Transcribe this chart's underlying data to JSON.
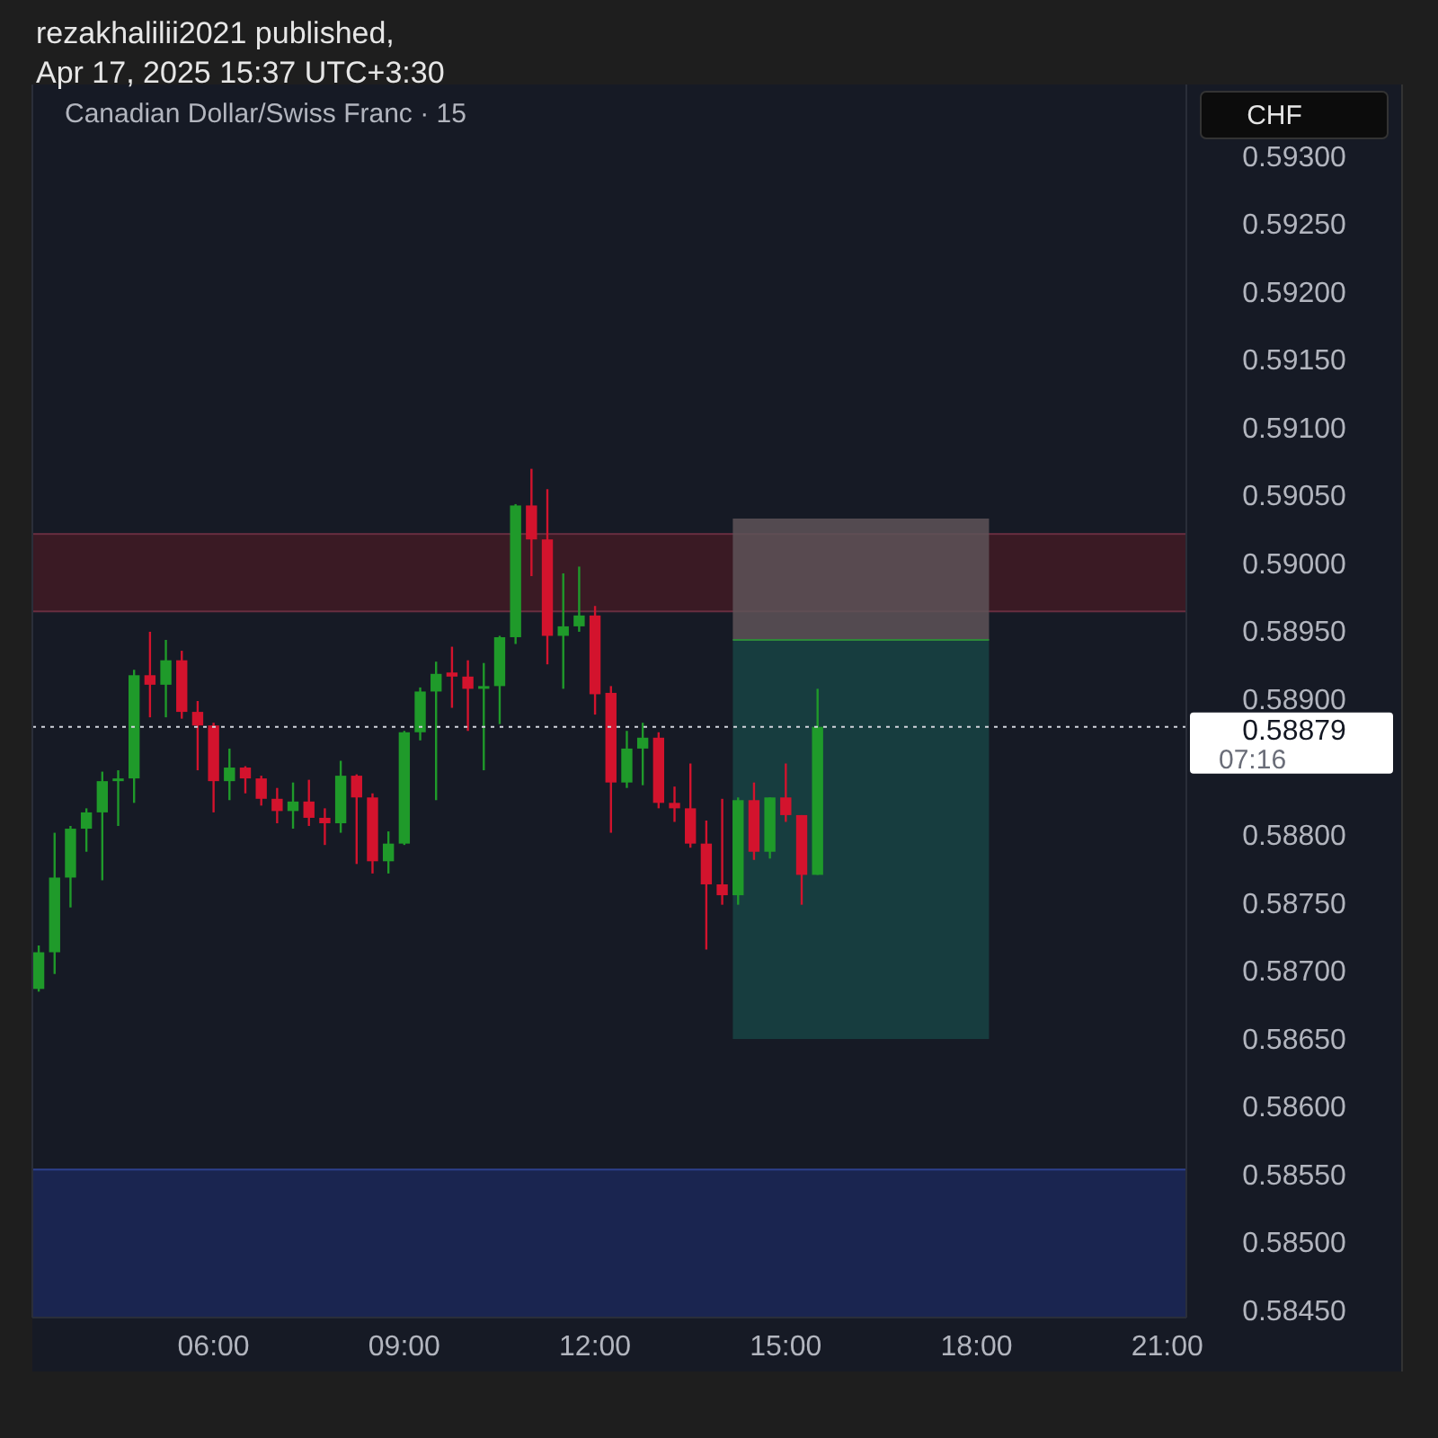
{
  "chart_data": {
    "type": "candlestick",
    "title": "Canadian Dollar/Swiss Franc · 15",
    "subtitle": "rezakhalilii2021 published,\nApr 17, 2025 15:37 UTC+3:30",
    "ylabel": "CHF",
    "x": [
      3.25,
      3.5,
      3.75,
      4,
      4.25,
      4.5,
      4.75,
      5,
      5.25,
      5.5,
      5.75,
      6,
      6.25,
      6.5,
      6.75,
      7,
      7.25,
      7.5,
      7.75,
      8,
      8.25,
      8.5,
      8.75,
      9,
      9.25,
      9.5,
      9.75,
      10,
      10.25,
      10.5,
      10.75,
      11,
      11.25,
      11.5,
      11.75,
      12,
      12.25,
      12.5,
      12.75,
      13,
      13.25,
      13.5,
      13.75,
      14,
      14.25,
      14.5,
      14.75,
      15,
      15.25,
      15.5
    ],
    "ohlc": [
      [
        0.58686,
        0.58718,
        0.58684,
        0.58713
      ],
      [
        0.58713,
        0.58801,
        0.58697,
        0.58768
      ],
      [
        0.58768,
        0.58806,
        0.58746,
        0.58804
      ],
      [
        0.58804,
        0.58819,
        0.58787,
        0.58816
      ],
      [
        0.58816,
        0.58846,
        0.58766,
        0.58839
      ],
      [
        0.58839,
        0.58847,
        0.58806,
        0.58841
      ],
      [
        0.58841,
        0.58921,
        0.58823,
        0.58917
      ],
      [
        0.58917,
        0.58949,
        0.58886,
        0.5891
      ],
      [
        0.5891,
        0.58943,
        0.58886,
        0.58928
      ],
      [
        0.58928,
        0.58935,
        0.58885,
        0.5889
      ],
      [
        0.5889,
        0.58898,
        0.58847,
        0.5888
      ],
      [
        0.5888,
        0.58882,
        0.58816,
        0.58839
      ],
      [
        0.58839,
        0.58863,
        0.58825,
        0.58849
      ],
      [
        0.58849,
        0.5885,
        0.5883,
        0.58841
      ],
      [
        0.58841,
        0.58843,
        0.58821,
        0.58826
      ],
      [
        0.58826,
        0.58834,
        0.58808,
        0.58817
      ],
      [
        0.58817,
        0.58838,
        0.58804,
        0.58824
      ],
      [
        0.58824,
        0.5884,
        0.58806,
        0.58812
      ],
      [
        0.58812,
        0.58819,
        0.58792,
        0.58808
      ],
      [
        0.58808,
        0.58854,
        0.58801,
        0.58843
      ],
      [
        0.58843,
        0.58844,
        0.58778,
        0.58827
      ],
      [
        0.58827,
        0.5883,
        0.58771,
        0.5878
      ],
      [
        0.5878,
        0.58802,
        0.58771,
        0.58793
      ],
      [
        0.58793,
        0.58876,
        0.58792,
        0.58875
      ],
      [
        0.58875,
        0.58908,
        0.58869,
        0.58905
      ],
      [
        0.58905,
        0.58927,
        0.58825,
        0.58918
      ],
      [
        0.58919,
        0.58938,
        0.58893,
        0.58916
      ],
      [
        0.58916,
        0.58928,
        0.58876,
        0.58907
      ],
      [
        0.58907,
        0.58926,
        0.58847,
        0.58909
      ],
      [
        0.58909,
        0.58946,
        0.58881,
        0.58945
      ],
      [
        0.58945,
        0.59043,
        0.5894,
        0.59042
      ],
      [
        0.59042,
        0.59069,
        0.5899,
        0.59017
      ],
      [
        0.59017,
        0.59054,
        0.58925,
        0.58946
      ],
      [
        0.58946,
        0.58992,
        0.58907,
        0.58953
      ],
      [
        0.58953,
        0.58997,
        0.58949,
        0.58961
      ],
      [
        0.58961,
        0.58968,
        0.58888,
        0.58903
      ],
      [
        0.58904,
        0.58909,
        0.58801,
        0.58838
      ],
      [
        0.58838,
        0.58876,
        0.58834,
        0.58863
      ],
      [
        0.58863,
        0.58882,
        0.58836,
        0.58871
      ],
      [
        0.58871,
        0.58875,
        0.58819,
        0.58823
      ],
      [
        0.58823,
        0.58835,
        0.58809,
        0.58819
      ],
      [
        0.58819,
        0.58852,
        0.5879,
        0.58793
      ],
      [
        0.58793,
        0.5881,
        0.58715,
        0.58763
      ],
      [
        0.58763,
        0.58826,
        0.58748,
        0.58755
      ],
      [
        0.58755,
        0.58827,
        0.58748,
        0.58825
      ],
      [
        0.58825,
        0.58838,
        0.58781,
        0.58787
      ],
      [
        0.58787,
        0.58827,
        0.58782,
        0.58827
      ],
      [
        0.58827,
        0.58852,
        0.58809,
        0.58814
      ],
      [
        0.58814,
        0.58814,
        0.58748,
        0.5877
      ],
      [
        0.5877,
        0.58907,
        0.5877,
        0.58879
      ]
    ],
    "xlim": [
      3.15,
      21.3
    ],
    "xticks": [
      {
        "value": 6,
        "label": "06:00"
      },
      {
        "value": 9,
        "label": "09:00"
      },
      {
        "value": 12,
        "label": "12:00"
      },
      {
        "value": 15,
        "label": "15:00"
      },
      {
        "value": 18,
        "label": "18:00"
      },
      {
        "value": 21,
        "label": "21:00"
      }
    ],
    "ylim": [
      0.58444,
      0.59352
    ],
    "yticks": [
      {
        "value": 0.5845,
        "label": "0.58450"
      },
      {
        "value": 0.585,
        "label": "0.58500"
      },
      {
        "value": 0.5855,
        "label": "0.58550"
      },
      {
        "value": 0.586,
        "label": "0.58600"
      },
      {
        "value": 0.5865,
        "label": "0.58650"
      },
      {
        "value": 0.587,
        "label": "0.58700"
      },
      {
        "value": 0.5875,
        "label": "0.58750"
      },
      {
        "value": 0.588,
        "label": "0.58800"
      },
      {
        "value": 0.589,
        "label": "0.58900"
      },
      {
        "value": 0.5895,
        "label": "0.58950"
      },
      {
        "value": 0.59,
        "label": "0.59000"
      },
      {
        "value": 0.5905,
        "label": "0.59050"
      },
      {
        "value": 0.591,
        "label": "0.59100"
      },
      {
        "value": 0.5915,
        "label": "0.59150"
      },
      {
        "value": 0.592,
        "label": "0.59200"
      },
      {
        "value": 0.5925,
        "label": "0.59250"
      },
      {
        "value": 0.593,
        "label": "0.59300"
      }
    ],
    "bands": [
      {
        "axis": "y",
        "from": 0.58964,
        "to": 0.59021,
        "color": "#3a1a24"
      },
      {
        "axis": "y",
        "from": 0.58444,
        "to": 0.58553,
        "color": "#1a2550"
      }
    ],
    "ref_lines": [
      {
        "axis": "y",
        "value": 0.58879,
        "label": "0.58879",
        "line_style": "dotted",
        "color": "#d1d4dc"
      }
    ],
    "annotations": [
      "07:16"
    ],
    "grid": false
  }
}
